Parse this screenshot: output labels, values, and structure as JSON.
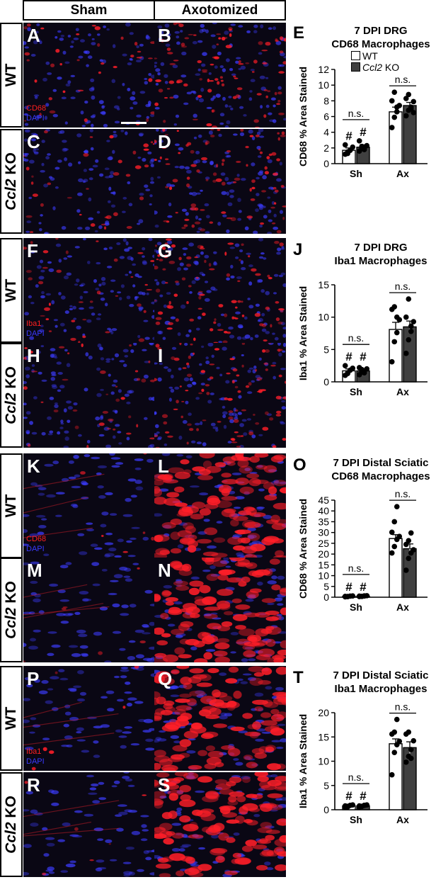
{
  "columns": [
    "Sham",
    "Axotomized"
  ],
  "row_labels": [
    {
      "pre": "",
      "ital": "",
      "post": "WT"
    },
    {
      "pre": "",
      "ital": "Ccl2",
      "post": " KO"
    },
    {
      "pre": "",
      "ital": "",
      "post": "WT"
    },
    {
      "pre": "",
      "ital": "Ccl2",
      "post": " KO"
    },
    {
      "pre": "",
      "ital": "",
      "post": "WT"
    },
    {
      "pre": "",
      "ital": "Ccl2",
      "post": " KO"
    },
    {
      "pre": "",
      "ital": "",
      "post": "WT"
    },
    {
      "pre": "",
      "ital": "Ccl2",
      "post": " KO"
    }
  ],
  "panels": [
    "A",
    "B",
    "C",
    "D",
    "F",
    "G",
    "H",
    "I",
    "K",
    "L",
    "M",
    "N",
    "P",
    "Q",
    "R",
    "S"
  ],
  "stains": [
    {
      "red": "CD68",
      "blue": "DAPI"
    },
    {
      "red": "Iba1",
      "blue": "DAPI"
    },
    {
      "red": "CD68",
      "blue": "DAPI"
    },
    {
      "red": "Iba1",
      "blue": "DAPI"
    }
  ],
  "legend": {
    "wt": "WT",
    "ko_ital": "Ccl2",
    "ko_post": " KO",
    "wt_color": "#ffffff",
    "ko_color": "#404040"
  },
  "chart_data": [
    {
      "letter": "E",
      "type": "bar",
      "title_lines": [
        "7 DPI DRG",
        "CD68 Macrophages"
      ],
      "ylabel": "CD68 % Area Stained",
      "categories": [
        "Sh",
        "Ax"
      ],
      "ylim": [
        0,
        12
      ],
      "yticks": [
        0,
        2,
        4,
        6,
        8,
        10,
        12
      ],
      "series": [
        {
          "name": "WT",
          "values": [
            1.7,
            6.6
          ],
          "err": [
            0.3,
            0.6
          ],
          "points": [
            [
              1.2,
              1.5,
              1.7,
              2.1,
              2.4,
              1.3
            ],
            [
              4.6,
              5.9,
              6.6,
              7.4,
              8.0,
              9.1,
              7.2
            ]
          ]
        },
        {
          "name": "Ccl2 KO",
          "values": [
            2.1,
            7.4
          ],
          "err": [
            0.3,
            0.4
          ],
          "points": [
            [
              1.6,
              1.9,
              2.0,
              2.3,
              2.9,
              2.2,
              1.8
            ],
            [
              6.1,
              6.8,
              7.2,
              7.9,
              8.3,
              8.8,
              7.0,
              6.5
            ]
          ]
        }
      ],
      "annotations": {
        "ns": "n.s.",
        "hash": "#"
      }
    },
    {
      "letter": "J",
      "type": "bar",
      "title_lines": [
        "7 DPI DRG",
        "Iba1 Macrophages"
      ],
      "ylabel": "Iba1 % Area Stained",
      "categories": [
        "Sh",
        "Ax"
      ],
      "ylim": [
        0,
        15
      ],
      "yticks": [
        0,
        5,
        10,
        15
      ],
      "series": [
        {
          "name": "WT",
          "values": [
            1.7,
            8.1
          ],
          "err": [
            0.3,
            1.1
          ],
          "points": [
            [
              1.0,
              1.4,
              1.8,
              2.1,
              2.5,
              1.3
            ],
            [
              3.1,
              6.2,
              7.6,
              9.6,
              11.2,
              11.6,
              10.0
            ]
          ]
        },
        {
          "name": "Ccl2 KO",
          "values": [
            1.7,
            8.5
          ],
          "err": [
            0.2,
            0.9
          ],
          "points": [
            [
              1.1,
              1.5,
              1.7,
              2.0,
              2.2,
              1.9,
              1.4
            ],
            [
              4.4,
              6.5,
              7.8,
              9.3,
              10.0,
              12.8,
              8.6
            ]
          ]
        }
      ],
      "annotations": {
        "ns": "n.s.",
        "hash": "#"
      }
    },
    {
      "letter": "O",
      "type": "bar",
      "title_lines": [
        "7 DPI Distal Sciatic",
        "CD68 Macrophages"
      ],
      "ylabel": "CD68 % Area Stained",
      "categories": [
        "Sh",
        "Ax"
      ],
      "ylim": [
        0,
        45
      ],
      "yticks": [
        0,
        5,
        10,
        15,
        20,
        25,
        30,
        35,
        40,
        45
      ],
      "series": [
        {
          "name": "WT",
          "values": [
            0.4,
            27.2
          ],
          "err": [
            0.1,
            1.8
          ],
          "points": [
            [
              0.2,
              0.3,
              0.5,
              0.6,
              0.4,
              0.3
            ],
            [
              20.5,
              23.5,
              26.8,
              28.2,
              30.1,
              35.0,
              42.0
            ]
          ]
        },
        {
          "name": "Ccl2 KO",
          "values": [
            0.5,
            22.5
          ],
          "err": [
            0.1,
            2.2
          ],
          "points": [
            [
              0.3,
              0.4,
              0.6,
              0.7,
              0.5,
              0.4,
              0.6
            ],
            [
              12.5,
              18.0,
              20.5,
              22.0,
              24.5,
              26.2,
              29.8
            ]
          ]
        }
      ],
      "annotations": {
        "ns": "n.s.",
        "hash": "#"
      }
    },
    {
      "letter": "T",
      "type": "bar",
      "title_lines": [
        "7 DPI Distal Sciatic",
        "Iba1 Macrophages"
      ],
      "ylabel": "Iba1 % Area Stained",
      "categories": [
        "Sh",
        "Ax"
      ],
      "ylim": [
        0,
        20
      ],
      "yticks": [
        0,
        5,
        10,
        15,
        20
      ],
      "series": [
        {
          "name": "WT",
          "values": [
            0.8,
            13.6
          ],
          "err": [
            0.1,
            1.0
          ],
          "points": [
            [
              0.5,
              0.7,
              0.9,
              1.0,
              0.8,
              0.6
            ],
            [
              7.2,
              11.8,
              13.4,
              14.1,
              15.6,
              16.0,
              18.6
            ]
          ]
        },
        {
          "name": "Ccl2 KO",
          "values": [
            0.8,
            12.8
          ],
          "err": [
            0.1,
            1.2
          ],
          "points": [
            [
              0.6,
              0.7,
              0.9,
              1.0,
              0.8,
              0.7,
              0.9
            ],
            [
              9.8,
              11.0,
              12.4,
              14.2,
              15.6,
              16.0,
              10.6
            ]
          ]
        }
      ],
      "annotations": {
        "ns": "n.s.",
        "hash": "#"
      }
    }
  ]
}
